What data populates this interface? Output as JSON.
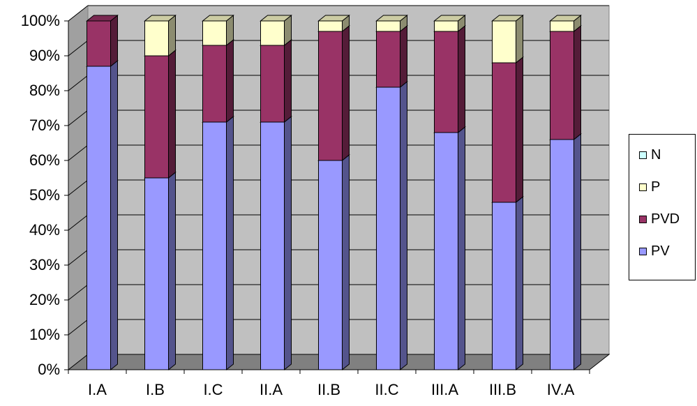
{
  "chart_data": {
    "type": "bar",
    "stacked": true,
    "percent": true,
    "three_d": true,
    "categories": [
      "I.A",
      "I.B",
      "I.C",
      "II.A",
      "II.B",
      "II.C",
      "III.A",
      "III.B",
      "IV.A"
    ],
    "series": [
      {
        "name": "PV",
        "color": "#9999ff",
        "values": [
          87,
          55,
          71,
          71,
          60,
          81,
          68,
          48,
          66
        ]
      },
      {
        "name": "PVD",
        "color": "#993366",
        "values": [
          13,
          35,
          22,
          22,
          37,
          16,
          29,
          40,
          31
        ]
      },
      {
        "name": "P",
        "color": "#ffffcc",
        "values": [
          0,
          10,
          7,
          7,
          3,
          3,
          3,
          12,
          3
        ]
      },
      {
        "name": "N",
        "color": "#ccffff",
        "values": [
          0,
          0,
          0,
          0,
          0,
          0,
          0,
          0,
          0
        ]
      }
    ],
    "yticks": [
      "0%",
      "10%",
      "20%",
      "30%",
      "40%",
      "50%",
      "60%",
      "70%",
      "80%",
      "90%",
      "100%"
    ],
    "ylim": [
      0,
      100
    ],
    "grid": true,
    "wall_color": "#c0c0c0",
    "legend_position": "right",
    "legend_order": [
      "N",
      "P",
      "PVD",
      "PV"
    ]
  }
}
